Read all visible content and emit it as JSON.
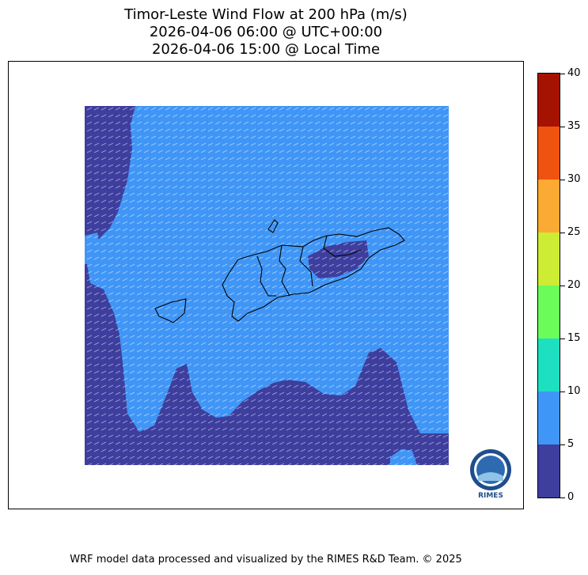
{
  "title": {
    "line1": "Timor-Leste Wind Flow at 200 hPa (m/s)",
    "line2": "2026-04-06 06:00 @ UTC+00:00",
    "line3": "2026-04-06 15:00 @ Local Time"
  },
  "colorbar": {
    "ticks": [
      "0",
      "5",
      "10",
      "15",
      "20",
      "25",
      "30",
      "35",
      "40"
    ],
    "colors": [
      "#3d3e9e",
      "#4096f6",
      "#1de0c1",
      "#6cfc5a",
      "#cdec34",
      "#fbaa33",
      "#ef5310",
      "#a51202"
    ]
  },
  "map": {
    "low_speed_color": "#3d3e9e",
    "high_speed_color": "#4096f6"
  },
  "logo": {
    "text": "RIMES"
  },
  "footer": "WRF model data processed and visualized by the RIMES R&D Team. © 2025"
}
